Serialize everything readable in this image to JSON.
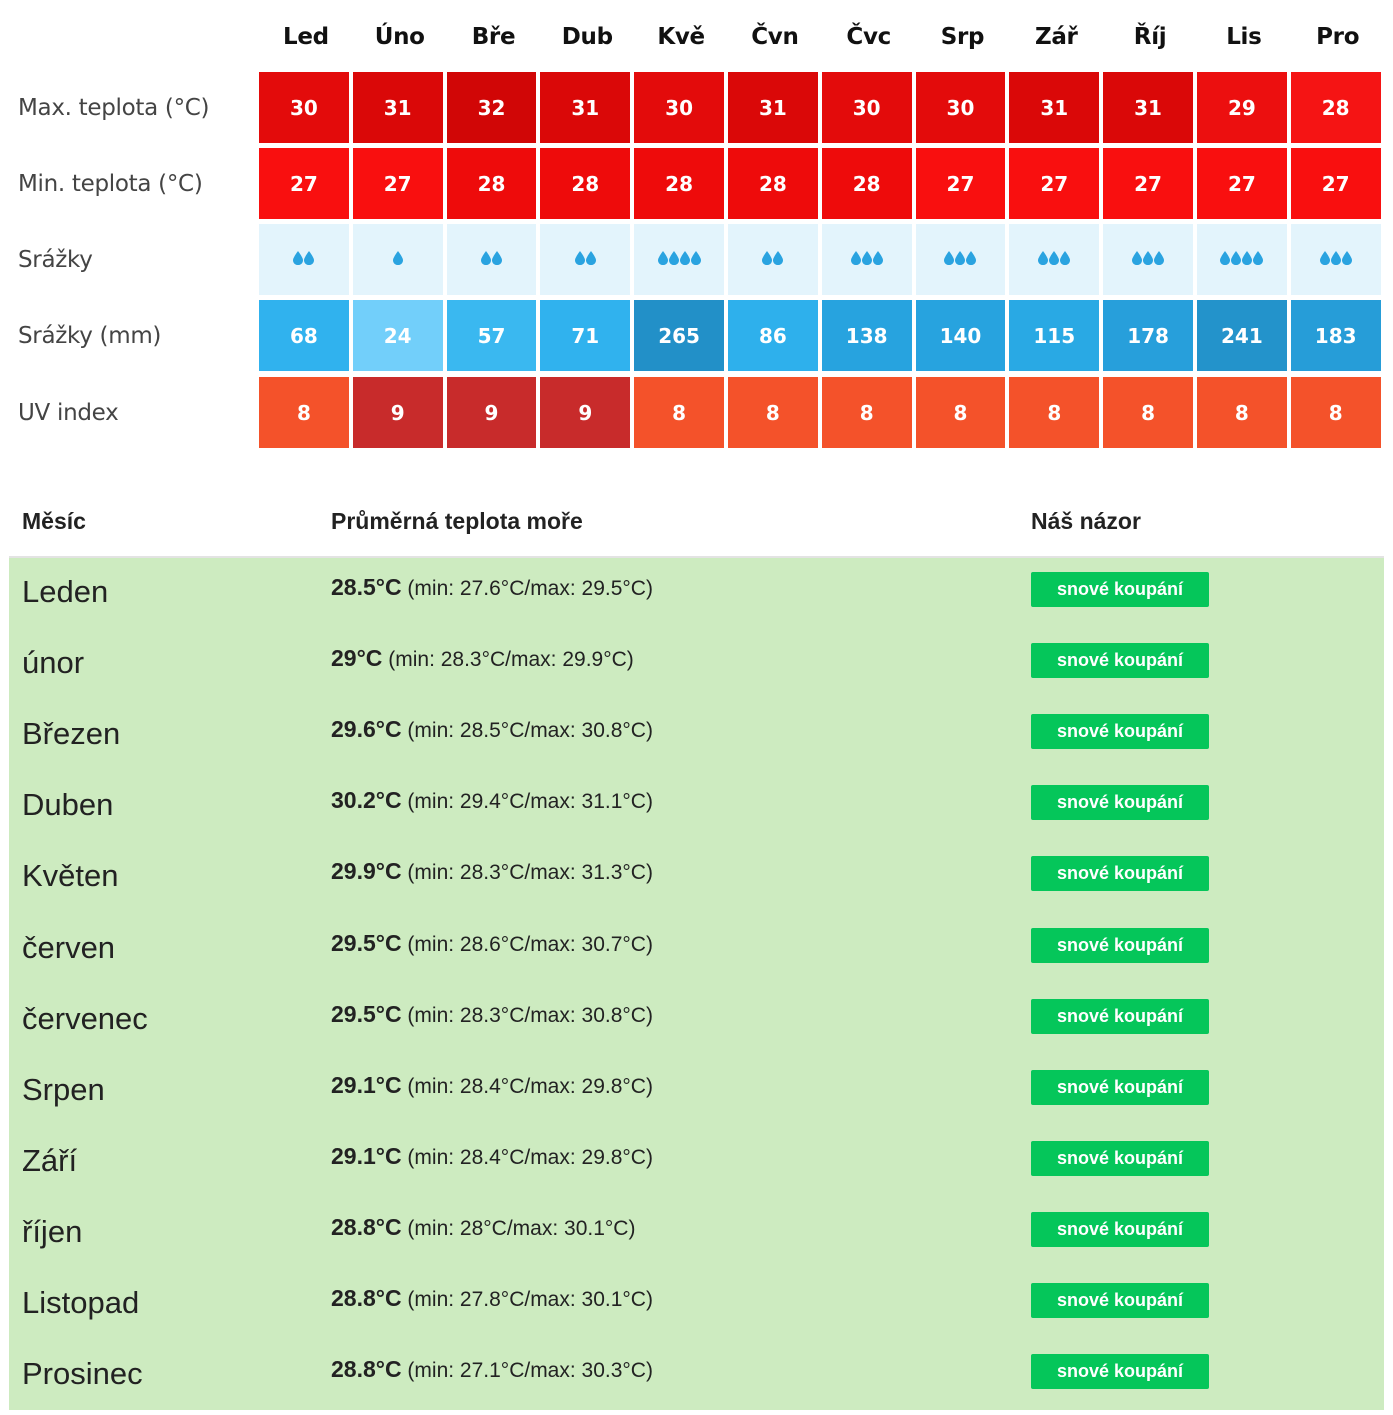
{
  "climate": {
    "months": [
      "Led",
      "Úno",
      "Bře",
      "Dub",
      "Kvě",
      "Čvn",
      "Čvc",
      "Srp",
      "Zář",
      "Říj",
      "Lis",
      "Pro"
    ],
    "rows": [
      {
        "label": "Max. teplota (°C)",
        "key": "max",
        "values": [
          "30",
          "31",
          "32",
          "31",
          "30",
          "31",
          "30",
          "30",
          "31",
          "31",
          "29",
          "28"
        ],
        "colors": [
          "#e30b0b",
          "#da0808",
          "#d10606",
          "#da0808",
          "#e30b0b",
          "#da0808",
          "#e30b0b",
          "#e30b0b",
          "#da0808",
          "#da0808",
          "#ec0f0f",
          "#f51414"
        ]
      },
      {
        "label": "Min. teplota (°C)",
        "key": "min",
        "values": [
          "27",
          "27",
          "28",
          "28",
          "28",
          "28",
          "28",
          "27",
          "27",
          "27",
          "27",
          "27"
        ],
        "colors": [
          "#f90f0f",
          "#f90f0f",
          "#ee0b0b",
          "#ee0b0b",
          "#ee0b0b",
          "#ee0b0b",
          "#ee0b0b",
          "#f90f0f",
          "#f90f0f",
          "#f90f0f",
          "#f90f0f",
          "#f90f0f"
        ]
      },
      {
        "label": "Srážky",
        "key": "drops",
        "drops": [
          2,
          1,
          2,
          2,
          4,
          2,
          3,
          3,
          3,
          3,
          4,
          3
        ],
        "colors": [
          "#e3f4fc",
          "#e3f4fc",
          "#e3f4fc",
          "#e3f4fc",
          "#e3f4fc",
          "#e3f4fc",
          "#e3f4fc",
          "#e3f4fc",
          "#e3f4fc",
          "#e3f4fc",
          "#e3f4fc",
          "#e3f4fc"
        ]
      },
      {
        "label": "Srážky (mm)",
        "key": "mm",
        "values": [
          "68",
          "24",
          "57",
          "71",
          "265",
          "86",
          "138",
          "140",
          "115",
          "178",
          "241",
          "183"
        ],
        "colors": [
          "#30b2ee",
          "#72cffa",
          "#3ab8f0",
          "#30b2ee",
          "#2290c8",
          "#2eb0ec",
          "#27a3df",
          "#27a3df",
          "#29a9e4",
          "#279fdb",
          "#2393cb",
          "#269dd8"
        ]
      },
      {
        "label": "UV index",
        "key": "uv",
        "values": [
          "8",
          "9",
          "9",
          "9",
          "8",
          "8",
          "8",
          "8",
          "8",
          "8",
          "8",
          "8"
        ],
        "colors": [
          "#f4522a",
          "#c82b2b",
          "#c82b2b",
          "#c82b2b",
          "#f4522a",
          "#f4522a",
          "#f4522a",
          "#f4522a",
          "#f4522a",
          "#f4522a",
          "#f4522a",
          "#f4522a"
        ]
      }
    ]
  },
  "sea": {
    "headers": {
      "month": "Měsíc",
      "temp": "Průměrná teplota moře",
      "opinion": "Náš názor"
    },
    "rows": [
      {
        "month": "Leden",
        "avg": "28.5°C",
        "range": "(min: 27.6°C/max: 29.5°C)",
        "opinion": "snové koupání"
      },
      {
        "month": "únor",
        "avg": "29°C",
        "range": "(min: 28.3°C/max: 29.9°C)",
        "opinion": "snové koupání"
      },
      {
        "month": "Březen",
        "avg": "29.6°C",
        "range": "(min: 28.5°C/max: 30.8°C)",
        "opinion": "snové koupání"
      },
      {
        "month": "Duben",
        "avg": "30.2°C",
        "range": "(min: 29.4°C/max: 31.1°C)",
        "opinion": "snové koupání"
      },
      {
        "month": "Květen",
        "avg": "29.9°C",
        "range": "(min: 28.3°C/max: 31.3°C)",
        "opinion": "snové koupání"
      },
      {
        "month": "červen",
        "avg": "29.5°C",
        "range": "(min: 28.6°C/max: 30.7°C)",
        "opinion": "snové koupání"
      },
      {
        "month": "červenec",
        "avg": "29.5°C",
        "range": "(min: 28.3°C/max: 30.8°C)",
        "opinion": "snové koupání"
      },
      {
        "month": "Srpen",
        "avg": "29.1°C",
        "range": "(min: 28.4°C/max: 29.8°C)",
        "opinion": "snové koupání"
      },
      {
        "month": "Září",
        "avg": "29.1°C",
        "range": "(min: 28.4°C/max: 29.8°C)",
        "opinion": "snové koupání"
      },
      {
        "month": "říjen",
        "avg": "28.8°C",
        "range": "(min: 28°C/max: 30.1°C)",
        "opinion": "snové koupání"
      },
      {
        "month": "Listopad",
        "avg": "28.8°C",
        "range": "(min: 27.8°C/max: 30.1°C)",
        "opinion": "snové koupání"
      },
      {
        "month": "Prosinec",
        "avg": "28.8°C",
        "range": "(min: 27.1°C/max: 30.3°C)",
        "opinion": "snové koupání"
      }
    ],
    "badge_color": "#05c65a",
    "row_bg": "#cdebc0"
  },
  "icons": {
    "drop": "water-drop-icon"
  }
}
